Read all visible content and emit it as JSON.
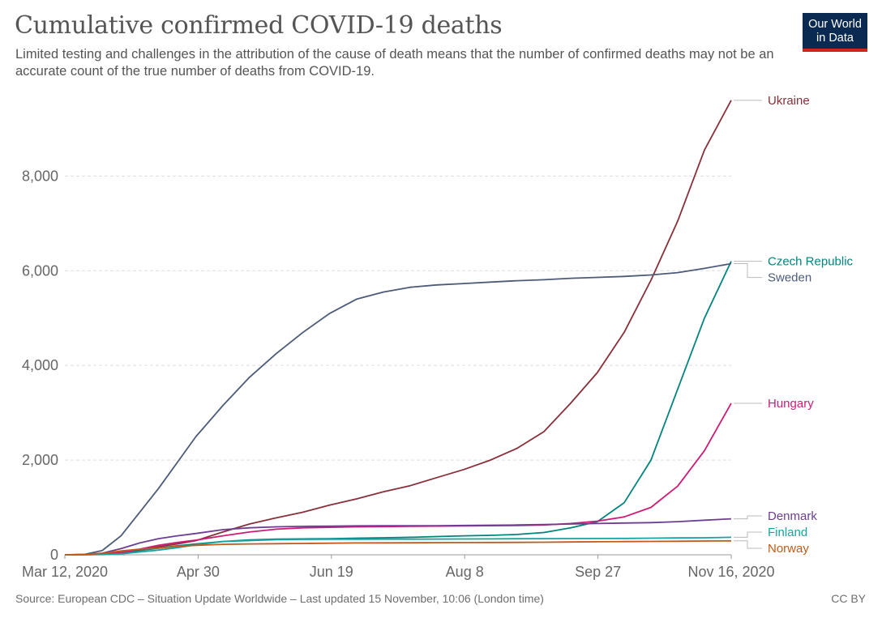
{
  "header": {
    "title": "Cumulative confirmed COVID-19 deaths",
    "subtitle": "Limited testing and challenges in the attribution of the cause of death means that the number of confirmed deaths may not be an accurate count of the true number of deaths from COVID-19."
  },
  "logo": {
    "line1": "Our World",
    "line2": "in Data",
    "bg_color": "#0b2a52",
    "accent_color": "#ce261e"
  },
  "footer": {
    "source": "Source: European CDC – Situation Update Worldwide – Last updated 15 November, 10:06 (London time)",
    "license": "CC BY"
  },
  "chart_data": {
    "type": "line",
    "title": "Cumulative confirmed COVID-19 deaths",
    "xlabel": "",
    "ylabel": "",
    "x": [
      "2020-03-12",
      "2020-03-19",
      "2020-03-26",
      "2020-04-02",
      "2020-04-09",
      "2020-04-16",
      "2020-04-23",
      "2020-04-30",
      "2020-05-10",
      "2020-05-20",
      "2020-05-30",
      "2020-06-09",
      "2020-06-19",
      "2020-06-29",
      "2020-07-09",
      "2020-07-19",
      "2020-07-29",
      "2020-08-08",
      "2020-08-18",
      "2020-08-28",
      "2020-09-07",
      "2020-09-17",
      "2020-09-27",
      "2020-10-07",
      "2020-10-17",
      "2020-10-27",
      "2020-11-06",
      "2020-11-16"
    ],
    "x_ticks": [
      "Mar 12, 2020",
      "Apr 30",
      "Jun 19",
      "Aug 8",
      "Sep 27",
      "Nov 16, 2020"
    ],
    "y_ticks": [
      0,
      2000,
      4000,
      6000,
      8000
    ],
    "y_tick_labels": [
      "0",
      "2,000",
      "4,000",
      "6,000",
      "8,000"
    ],
    "ylim": [
      0,
      9700
    ],
    "grid": "horizontal dashed",
    "legend": "right, labels at line ends",
    "series": [
      {
        "name": "Ukraine",
        "color": "#883039",
        "values": [
          0,
          5,
          22,
          50,
          100,
          170,
          230,
          300,
          480,
          650,
          780,
          900,
          1050,
          1180,
          1330,
          1460,
          1630,
          1800,
          2000,
          2250,
          2600,
          3200,
          3850,
          4700,
          5800,
          7050,
          8550,
          9600
        ]
      },
      {
        "name": "Czech Republic",
        "color": "#00847e",
        "values": [
          0,
          0,
          9,
          35,
          90,
          140,
          190,
          230,
          280,
          315,
          330,
          335,
          340,
          350,
          360,
          370,
          385,
          400,
          410,
          430,
          470,
          570,
          700,
          1100,
          2000,
          3500,
          5000,
          6200
        ]
      },
      {
        "name": "Sweden",
        "color": "#4c5b78",
        "values": [
          0,
          5,
          90,
          400,
          900,
          1400,
          1950,
          2500,
          3150,
          3750,
          4250,
          4700,
          5100,
          5400,
          5550,
          5650,
          5700,
          5730,
          5760,
          5790,
          5810,
          5840,
          5860,
          5880,
          5910,
          5960,
          6050,
          6150
        ]
      },
      {
        "name": "Hungary",
        "color": "#ce1b76",
        "values": [
          0,
          1,
          12,
          40,
          120,
          200,
          260,
          310,
          400,
          480,
          540,
          570,
          580,
          590,
          595,
          600,
          605,
          610,
          615,
          620,
          630,
          660,
          710,
          800,
          1000,
          1450,
          2200,
          3200
        ]
      },
      {
        "name": "Denmark",
        "color": "#6d3e91",
        "values": [
          0,
          5,
          35,
          130,
          250,
          340,
          400,
          450,
          530,
          570,
          590,
          600,
          605,
          610,
          615,
          615,
          615,
          620,
          625,
          630,
          640,
          650,
          660,
          670,
          680,
          700,
          730,
          760
        ]
      },
      {
        "name": "Finland",
        "color": "#18a3a0",
        "values": [
          0,
          0,
          5,
          20,
          60,
          100,
          150,
          210,
          280,
          300,
          320,
          325,
          328,
          329,
          330,
          331,
          332,
          334,
          336,
          338,
          340,
          342,
          344,
          346,
          350,
          355,
          360,
          370
        ]
      },
      {
        "name": "Norway",
        "color": "#c15a1a",
        "values": [
          0,
          5,
          30,
          80,
          120,
          140,
          180,
          200,
          220,
          230,
          235,
          240,
          245,
          250,
          252,
          254,
          256,
          258,
          260,
          262,
          266,
          270,
          275,
          279,
          282,
          285,
          290,
          295
        ]
      }
    ]
  }
}
